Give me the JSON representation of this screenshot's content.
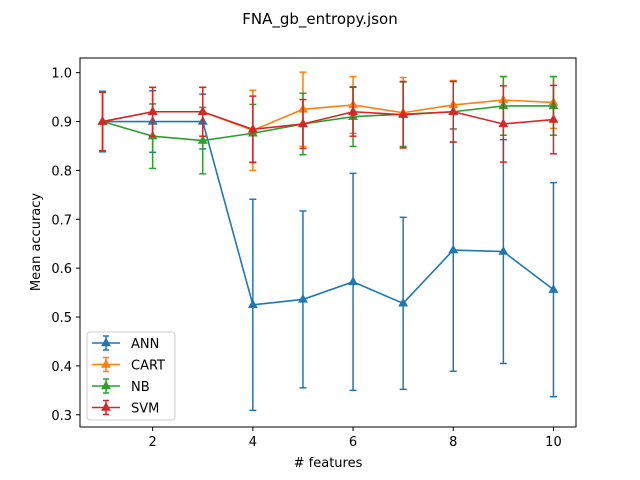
{
  "chart_data": {
    "type": "line",
    "title": "FNA_gb_entropy.json",
    "xlabel": "# features",
    "ylabel": "Mean accuracy",
    "xlim": [
      0.55,
      10.45
    ],
    "ylim": [
      0.275,
      1.03
    ],
    "xticks": [
      2,
      4,
      6,
      8,
      10
    ],
    "yticks": [
      0.3,
      0.4,
      0.5,
      0.6,
      0.7,
      0.8,
      0.9,
      1.0
    ],
    "ytick_labels": [
      "0.3",
      "0.4",
      "0.5",
      "0.6",
      "0.7",
      "0.8",
      "0.9",
      "1.0"
    ],
    "grid": false,
    "legend_position": "lower-left",
    "x": [
      1,
      2,
      3,
      4,
      5,
      6,
      7,
      8,
      9,
      10
    ],
    "series": [
      {
        "name": "ANN",
        "color": "#1f77b4",
        "marker": "triangle",
        "values": [
          0.9,
          0.9,
          0.9,
          0.525,
          0.536,
          0.572,
          0.528,
          0.637,
          0.634,
          0.556
        ],
        "errors": [
          0.062,
          0.063,
          0.056,
          0.216,
          0.181,
          0.222,
          0.176,
          0.248,
          0.229,
          0.219
        ]
      },
      {
        "name": "CART",
        "color": "#ff7f0e",
        "marker": "triangle",
        "values": [
          0.9,
          0.92,
          0.92,
          0.882,
          0.925,
          0.934,
          0.918,
          0.934,
          0.944,
          0.939
        ],
        "errors": [
          0.06,
          0.05,
          0.05,
          0.082,
          0.076,
          0.058,
          0.072,
          0.05,
          0.048,
          0.053
        ]
      },
      {
        "name": "NB",
        "color": "#2ca02c",
        "marker": "triangle",
        "values": [
          0.9,
          0.87,
          0.861,
          0.876,
          0.895,
          0.91,
          0.915,
          0.92,
          0.932,
          0.932
        ],
        "errors": [
          0.06,
          0.066,
          0.068,
          0.059,
          0.063,
          0.061,
          0.066,
          0.062,
          0.06,
          0.06
        ]
      },
      {
        "name": "SVM",
        "color": "#d62728",
        "marker": "triangle",
        "values": [
          0.9,
          0.92,
          0.92,
          0.884,
          0.895,
          0.92,
          0.914,
          0.92,
          0.895,
          0.904
        ],
        "errors": [
          0.06,
          0.05,
          0.05,
          0.068,
          0.05,
          0.05,
          0.068,
          0.062,
          0.078,
          0.07
        ]
      }
    ]
  }
}
